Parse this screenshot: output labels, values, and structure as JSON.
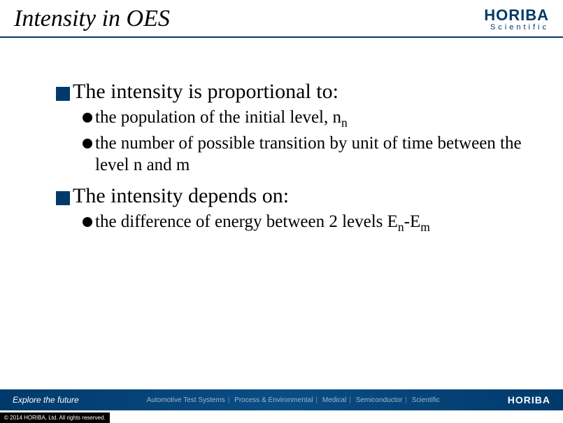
{
  "header": {
    "title": "Intensity in OES",
    "logo": {
      "main": "HORIBA",
      "sub": "Scientific"
    }
  },
  "content": {
    "sections": [
      {
        "heading": "The intensity is proportional to:",
        "items": [
          {
            "text": "the population of the initial level, n",
            "sub": "n"
          },
          {
            "text": "the number of possible transition by unit of time between the level n and m"
          }
        ]
      },
      {
        "heading": "The intensity depends on:",
        "items": [
          {
            "text": "the difference of energy between 2 levels E",
            "sub": "n",
            "text2": "-E",
            "sub2": "m"
          }
        ]
      }
    ]
  },
  "footer": {
    "left": "Explore the future",
    "center_items": [
      "Automotive Test Systems",
      "Process & Environmental",
      "Medical",
      "Semiconductor",
      "Scientific"
    ],
    "right": "HORIBA"
  },
  "copyright": "© 2014 HORIBA, Ltd. All rights reserved.",
  "colors": {
    "accent": "#003a6b",
    "footer_text_dim": "#9fb8cc"
  }
}
